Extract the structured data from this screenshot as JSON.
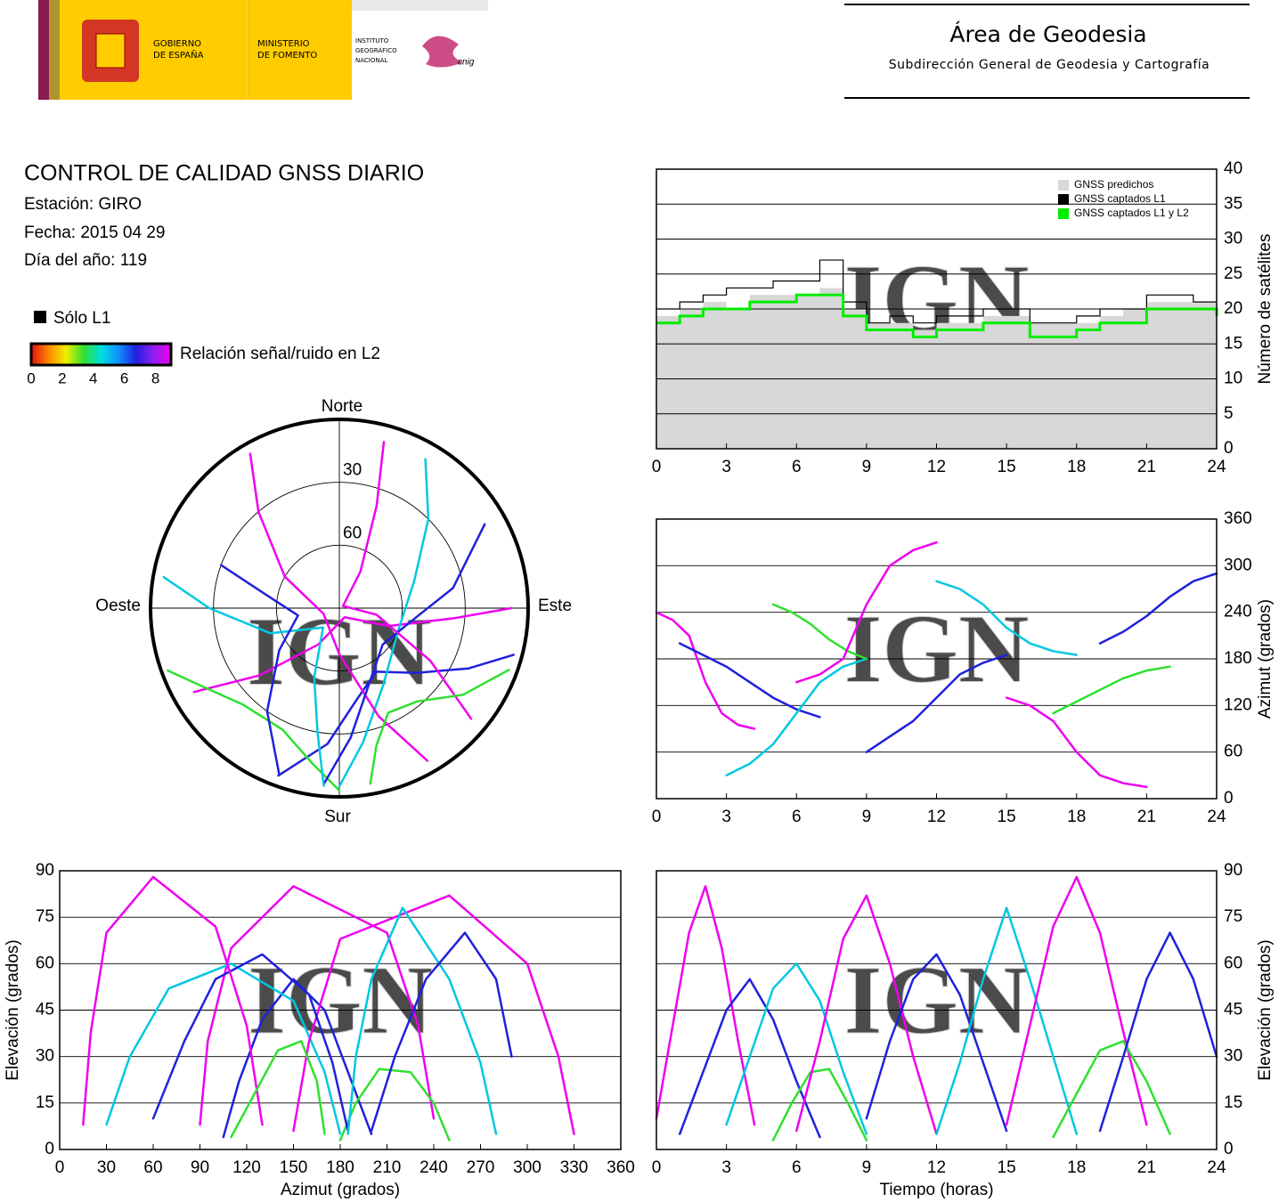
{
  "header": {
    "gobierno": [
      "GOBIERNO",
      "DE ESPAÑA"
    ],
    "ministerio": [
      "MINISTERIO",
      "DE FOMENTO"
    ],
    "instituto": [
      "INSTITUTO",
      "GEOGRÁFICO",
      "NACIONAL"
    ],
    "cnig": "cnig",
    "area": "Área de Geodesia",
    "subdireccion": "Subdirección General de Geodesia y Cartografía"
  },
  "report": {
    "title": "CONTROL DE CALIDAD GNSS DIARIO",
    "station": "Estación: GIRO",
    "date": "Fecha: 2015 04 29",
    "doy": "Día del año: 119",
    "l1_only": "Sólo L1",
    "colorbar": {
      "label": "Relación señal/ruido en L2",
      "lim": [
        0,
        9
      ],
      "ticks": [
        0,
        2,
        4,
        6,
        8
      ],
      "colors": [
        "#e01010",
        "#ff8800",
        "#f0f000",
        "#30e030",
        "#00e0e0",
        "#1090ff",
        "#2020e0",
        "#9020f0",
        "#ee00ee"
      ]
    }
  },
  "chart_data": [
    {
      "type": "step",
      "x": [
        0,
        1,
        2,
        3,
        4,
        5,
        6,
        7,
        8,
        9,
        10,
        11,
        12,
        13,
        14,
        15,
        16,
        17,
        18,
        19,
        20,
        21,
        22,
        23,
        24
      ],
      "xlim": [
        0,
        24
      ],
      "xticks": [
        0,
        3,
        6,
        9,
        12,
        15,
        18,
        21,
        24
      ],
      "ylim": [
        0,
        40
      ],
      "yticks": [
        0,
        5,
        10,
        15,
        20,
        25,
        30,
        35,
        40
      ],
      "ylabel": "Número de satélites",
      "grid": true,
      "legend": "top-right",
      "watermark": "IGN",
      "series": [
        {
          "name": "GNSS predichos",
          "color": "#d8d8d8",
          "values": [
            19,
            20,
            21,
            20,
            22,
            22,
            22,
            23,
            20,
            18,
            18,
            17,
            18,
            18,
            19,
            19,
            18,
            18,
            18,
            19,
            20,
            21,
            21,
            21,
            20
          ]
        },
        {
          "name": "GNSS captados L1",
          "color": "#000000",
          "values": [
            20,
            21,
            22,
            23,
            23,
            24,
            24,
            27,
            21,
            18,
            19,
            18,
            19,
            19,
            20,
            20,
            18,
            18,
            19,
            20,
            20,
            22,
            22,
            21,
            21
          ]
        },
        {
          "name": "GNSS captados L1 y L2",
          "color": "#00ee00",
          "values": [
            18,
            19,
            20,
            20,
            21,
            21,
            22,
            22,
            19,
            17,
            17,
            16,
            17,
            17,
            18,
            18,
            16,
            16,
            17,
            18,
            18,
            20,
            20,
            20,
            19
          ]
        }
      ]
    },
    {
      "type": "tracks",
      "watermark": "IGN",
      "series": [
        {
          "color": "#ee00ee",
          "t": [
            0,
            0.7,
            1.4,
            2.1,
            2.8,
            3.5,
            4.2
          ],
          "az": [
            240,
            230,
            210,
            150,
            110,
            95,
            90
          ],
          "el": [
            10,
            40,
            70,
            85,
            65,
            35,
            8
          ]
        },
        {
          "color": "#2020dd",
          "t": [
            1,
            2,
            3,
            4,
            5,
            6,
            7
          ],
          "az": [
            200,
            185,
            170,
            150,
            130,
            115,
            105
          ],
          "el": [
            5,
            25,
            45,
            55,
            42,
            22,
            4
          ]
        },
        {
          "color": "#00c8e0",
          "t": [
            3,
            4,
            5,
            6,
            7,
            8,
            9
          ],
          "az": [
            30,
            45,
            70,
            110,
            150,
            170,
            180
          ],
          "el": [
            8,
            30,
            52,
            60,
            48,
            25,
            5
          ]
        },
        {
          "color": "#30e030",
          "t": [
            5,
            5.8,
            6.6,
            7.4,
            8.2,
            9
          ],
          "az": [
            250,
            240,
            225,
            205,
            190,
            180
          ],
          "el": [
            3,
            15,
            25,
            26,
            15,
            3
          ]
        },
        {
          "color": "#ee00ee",
          "t": [
            6,
            7,
            8,
            9,
            10,
            11,
            12
          ],
          "az": [
            150,
            160,
            180,
            250,
            300,
            320,
            330
          ],
          "el": [
            6,
            35,
            68,
            82,
            60,
            30,
            5
          ]
        },
        {
          "color": "#2020dd",
          "t": [
            9,
            10,
            11,
            12,
            13,
            14,
            15
          ],
          "az": [
            60,
            80,
            100,
            130,
            160,
            175,
            185
          ],
          "el": [
            10,
            35,
            55,
            63,
            50,
            28,
            6
          ]
        },
        {
          "color": "#00c8e0",
          "t": [
            12,
            13,
            14,
            15,
            16,
            17,
            18
          ],
          "az": [
            280,
            270,
            250,
            220,
            200,
            190,
            185
          ],
          "el": [
            5,
            28,
            55,
            78,
            55,
            30,
            5
          ]
        },
        {
          "color": "#ee00ee",
          "t": [
            15,
            16,
            17,
            18,
            19,
            20,
            21
          ],
          "az": [
            130,
            120,
            100,
            60,
            30,
            20,
            15
          ],
          "el": [
            8,
            40,
            72,
            88,
            70,
            38,
            8
          ]
        },
        {
          "color": "#30e030",
          "t": [
            17,
            18,
            19,
            20,
            21,
            22
          ],
          "az": [
            110,
            125,
            140,
            155,
            165,
            170
          ],
          "el": [
            4,
            18,
            32,
            35,
            22,
            5
          ]
        },
        {
          "color": "#2020dd",
          "t": [
            19,
            20,
            21,
            22,
            23,
            24
          ],
          "az": [
            200,
            215,
            235,
            260,
            280,
            290
          ],
          "el": [
            6,
            30,
            55,
            70,
            55,
            30
          ]
        }
      ],
      "skyplot": {
        "north": "Norte",
        "south": "Sur",
        "east": "Este",
        "west": "Oeste",
        "rings": [
          30,
          60
        ]
      },
      "azimuth_time": {
        "xlim": [
          0,
          24
        ],
        "xticks": [
          0,
          3,
          6,
          9,
          12,
          15,
          18,
          21,
          24
        ],
        "ylim": [
          0,
          360
        ],
        "yticks": [
          0,
          60,
          120,
          180,
          240,
          300,
          360
        ],
        "ylabel": "Azimut (grados)"
      },
      "elevation_azimuth": {
        "xlim": [
          0,
          360
        ],
        "xticks": [
          0,
          30,
          60,
          90,
          120,
          150,
          180,
          210,
          240,
          270,
          300,
          330,
          360
        ],
        "ylim": [
          0,
          90
        ],
        "yticks": [
          0,
          15,
          30,
          45,
          60,
          75,
          90
        ],
        "xlabel": "Azimut (grados)",
        "ylabel": "Elevación (grados)"
      },
      "elevation_time": {
        "xlim": [
          0,
          24
        ],
        "xticks": [
          0,
          3,
          6,
          9,
          12,
          15,
          18,
          21,
          24
        ],
        "ylim": [
          0,
          90
        ],
        "yticks": [
          0,
          15,
          30,
          45,
          60,
          75,
          90
        ],
        "xlabel": "Tiempo (horas)",
        "ylabel": "Elevación (grados)"
      }
    }
  ]
}
